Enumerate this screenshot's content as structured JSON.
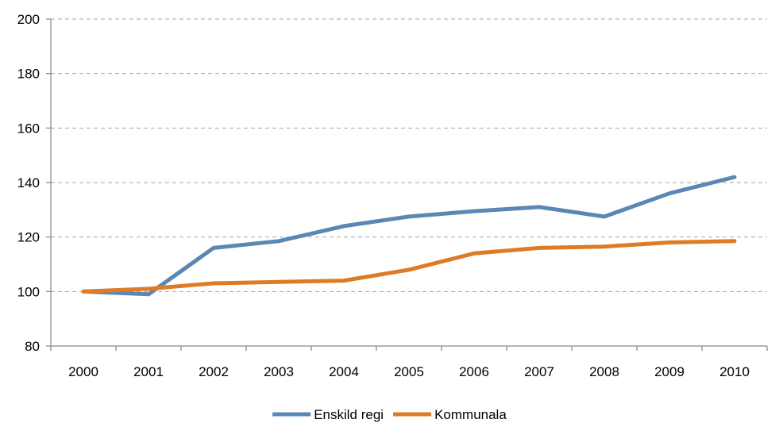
{
  "chart_data": {
    "type": "line",
    "categories": [
      "2000",
      "2001",
      "2002",
      "2003",
      "2004",
      "2005",
      "2006",
      "2007",
      "2008",
      "2009",
      "2010"
    ],
    "series": [
      {
        "name": "Enskild regi",
        "color": "#5b87b4",
        "values": [
          100,
          99,
          116,
          118.5,
          124,
          127.5,
          129.5,
          131,
          127.5,
          136,
          142
        ]
      },
      {
        "name": "Kommunala",
        "color": "#e07b25",
        "values": [
          100,
          101,
          103,
          103.5,
          104,
          108,
          114,
          116,
          116.5,
          118,
          118.5
        ]
      }
    ],
    "ylim": [
      80,
      200
    ],
    "yticks": [
      80,
      100,
      120,
      140,
      160,
      180,
      200
    ],
    "grid": "horizontal-dashed",
    "legend": "bottom-center"
  }
}
